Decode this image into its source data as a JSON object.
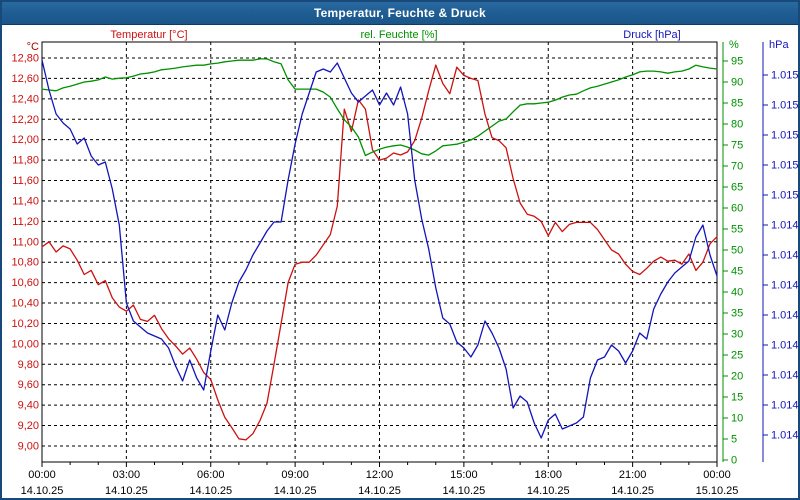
{
  "window": {
    "title": "Temperatur, Feuchte & Druck"
  },
  "colors": {
    "temperature": "#cc1111",
    "humidity": "#009000",
    "pressure": "#1414bb",
    "grid": "#000000",
    "axis_text": "#000000",
    "titlebar": "#1e5c91",
    "frame_border": "#17497b"
  },
  "header_labels": {
    "temperature": "Temperatur [°C]",
    "humidity": "rel. Feuchte [%]",
    "pressure": "Druck [hPa]"
  },
  "chart_data": {
    "type": "line",
    "title": "Temperatur, Feuchte & Druck",
    "grid": true,
    "legend_position": "top",
    "x_axis": {
      "start_hour": 0,
      "end_hour": 24,
      "major_tick_hours": 3,
      "minor_tick_hours": 1,
      "time_labels": [
        "00:00",
        "03:00",
        "06:00",
        "09:00",
        "12:00",
        "15:00",
        "18:00",
        "21:00",
        "00:00"
      ],
      "date_labels": [
        "14.10.25",
        "14.10.25",
        "14.10.25",
        "14.10.25",
        "14.10.25",
        "14.10.25",
        "14.10.25",
        "14.10.25",
        "15.10.25"
      ]
    },
    "axes": {
      "temperature": {
        "unit_label": "°C",
        "side": "left",
        "min": 9.0,
        "max": 12.8,
        "step": 0.2,
        "tick_labels": [
          "12,80",
          "12,60",
          "12,40",
          "12,20",
          "12,00",
          "11,80",
          "11,60",
          "11,40",
          "11,20",
          "11,00",
          "10,80",
          "10,60",
          "10,40",
          "10,20",
          "10,00",
          "9,80",
          "9,60",
          "9,40",
          "9,20",
          "9,00"
        ]
      },
      "humidity": {
        "unit_label": "%",
        "side": "right",
        "min": 0,
        "max": 95,
        "step": 5,
        "tick_labels": [
          "95",
          "90",
          "85",
          "80",
          "75",
          "70",
          "65",
          "60",
          "55",
          "50",
          "45",
          "40",
          "35",
          "30",
          "25",
          "20",
          "15",
          "10",
          "5",
          "0"
        ]
      },
      "pressure": {
        "unit_label": "hPa",
        "side": "right-outer",
        "min": 1014.0,
        "max": 1015.2,
        "step": 0.1,
        "tick_labels": [
          "1.015",
          "1.015",
          "1.015",
          "1.015",
          "1.015",
          "1.014",
          "1.014",
          "1.014",
          "1.014",
          "1.014",
          "1.014",
          "1.014",
          "1.014"
        ]
      }
    },
    "step_hours": 0.25,
    "series": [
      {
        "name": "Temperatur [°C]",
        "unit": "°C",
        "axis": "temperature",
        "color": "#cc1111",
        "values": [
          10.95,
          11.0,
          10.9,
          10.96,
          10.93,
          10.82,
          10.68,
          10.72,
          10.58,
          10.62,
          10.45,
          10.36,
          10.32,
          10.38,
          10.24,
          10.22,
          10.28,
          10.15,
          10.05,
          9.98,
          9.9,
          9.96,
          9.85,
          9.72,
          9.65,
          9.45,
          9.28,
          9.18,
          9.07,
          9.06,
          9.12,
          9.25,
          9.42,
          9.8,
          10.2,
          10.6,
          10.78,
          10.8,
          10.8,
          10.87,
          10.97,
          11.07,
          11.35,
          12.3,
          12.08,
          12.39,
          12.3,
          11.9,
          11.8,
          11.82,
          11.87,
          11.85,
          11.88,
          11.99,
          12.21,
          12.48,
          12.73,
          12.55,
          12.45,
          12.71,
          12.63,
          12.6,
          12.58,
          12.25,
          12.02,
          11.99,
          11.92,
          11.62,
          11.38,
          11.27,
          11.25,
          11.2,
          11.06,
          11.19,
          11.1,
          11.17,
          11.19,
          11.19,
          11.19,
          11.12,
          11.02,
          10.92,
          10.88,
          10.78,
          10.71,
          10.68,
          10.74,
          10.81,
          10.85,
          10.81,
          10.82,
          10.78,
          10.88,
          10.72,
          10.8,
          10.98,
          11.05
        ]
      },
      {
        "name": "rel. Feuchte [%]",
        "unit": "%",
        "axis": "humidity",
        "color": "#009000",
        "values": [
          88.3,
          88.1,
          87.9,
          88.6,
          89.0,
          89.5,
          90.0,
          90.2,
          90.5,
          91.2,
          90.7,
          90.9,
          91.0,
          91.4,
          91.9,
          92.1,
          92.4,
          92.9,
          93.1,
          93.3,
          93.6,
          93.8,
          94.0,
          94.0,
          94.3,
          94.5,
          94.8,
          95.0,
          95.2,
          95.2,
          95.2,
          95.5,
          95.5,
          94.8,
          94.3,
          90.5,
          88.3,
          88.3,
          88.3,
          88.3,
          87.6,
          86.4,
          83.6,
          81.0,
          79.3,
          76.9,
          72.5,
          73.3,
          74.0,
          74.5,
          74.8,
          75.0,
          74.5,
          73.8,
          72.9,
          72.6,
          73.6,
          74.8,
          75.0,
          75.2,
          75.7,
          76.2,
          77.1,
          78.3,
          79.5,
          80.7,
          81.2,
          82.9,
          84.5,
          84.8,
          84.8,
          85.0,
          85.2,
          85.7,
          86.4,
          86.9,
          87.1,
          87.9,
          88.6,
          89.0,
          89.5,
          90.0,
          90.5,
          91.2,
          91.7,
          92.4,
          92.6,
          92.6,
          92.4,
          92.1,
          92.4,
          92.6,
          93.1,
          94.0,
          93.6,
          93.3,
          93.1
        ]
      },
      {
        "name": "Druck [hPa]",
        "unit": "hPa",
        "axis": "pressure",
        "color": "#1414bb",
        "values": [
          1015.25,
          1015.15,
          1015.07,
          1015.04,
          1015.02,
          1014.97,
          1014.99,
          1014.93,
          1014.9,
          1014.91,
          1014.82,
          1014.7,
          1014.44,
          1014.38,
          1014.36,
          1014.34,
          1014.33,
          1014.32,
          1014.29,
          1014.23,
          1014.18,
          1014.25,
          1014.19,
          1014.15,
          1014.28,
          1014.4,
          1014.35,
          1014.44,
          1014.51,
          1014.55,
          1014.6,
          1014.64,
          1014.68,
          1014.71,
          1014.71,
          1014.85,
          1014.97,
          1015.07,
          1015.14,
          1015.21,
          1015.22,
          1015.21,
          1015.24,
          1015.19,
          1015.14,
          1015.11,
          1015.13,
          1015.15,
          1015.1,
          1015.14,
          1015.1,
          1015.16,
          1015.07,
          1014.85,
          1014.72,
          1014.62,
          1014.49,
          1014.39,
          1014.37,
          1014.31,
          1014.29,
          1014.26,
          1014.3,
          1014.38,
          1014.34,
          1014.29,
          1014.22,
          1014.09,
          1014.13,
          1014.11,
          1014.04,
          1013.99,
          1014.05,
          1014.07,
          1014.02,
          1014.03,
          1014.04,
          1014.06,
          1014.19,
          1014.25,
          1014.26,
          1014.3,
          1014.28,
          1014.24,
          1014.28,
          1014.34,
          1014.32,
          1014.42,
          1014.47,
          1014.51,
          1014.54,
          1014.56,
          1014.58,
          1014.66,
          1014.7,
          1014.6,
          1014.53
        ]
      }
    ]
  }
}
